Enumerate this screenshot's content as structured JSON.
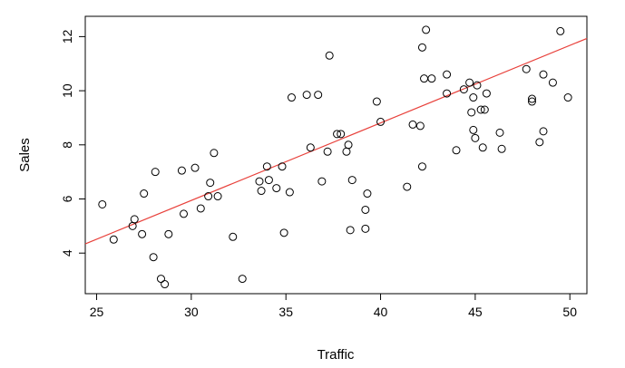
{
  "chart_data": {
    "type": "scatter",
    "title": "",
    "xlabel": "Traffic",
    "ylabel": "Sales",
    "xlim": [
      24.4,
      50.9
    ],
    "ylim": [
      2.5,
      12.75
    ],
    "xticks": [
      25,
      30,
      35,
      40,
      45,
      50
    ],
    "yticks": [
      4,
      6,
      8,
      10,
      12
    ],
    "grid": false,
    "legend": "none",
    "point_color": "#000000",
    "fit_color": "#e8413b",
    "fit_line": {
      "intercept": -2.65,
      "slope": 0.2865
    },
    "points": [
      {
        "x": 25.3,
        "y": 5.8
      },
      {
        "x": 25.9,
        "y": 4.5
      },
      {
        "x": 26.9,
        "y": 5.0
      },
      {
        "x": 27.0,
        "y": 5.25
      },
      {
        "x": 27.4,
        "y": 4.7
      },
      {
        "x": 27.5,
        "y": 6.2
      },
      {
        "x": 28.0,
        "y": 3.85
      },
      {
        "x": 28.1,
        "y": 7.0
      },
      {
        "x": 28.4,
        "y": 3.05
      },
      {
        "x": 28.6,
        "y": 2.85
      },
      {
        "x": 28.8,
        "y": 4.7
      },
      {
        "x": 29.5,
        "y": 7.05
      },
      {
        "x": 29.6,
        "y": 5.45
      },
      {
        "x": 30.2,
        "y": 7.15
      },
      {
        "x": 30.5,
        "y": 5.65
      },
      {
        "x": 30.9,
        "y": 6.1
      },
      {
        "x": 31.0,
        "y": 6.6
      },
      {
        "x": 31.2,
        "y": 7.7
      },
      {
        "x": 31.4,
        "y": 6.1
      },
      {
        "x": 32.2,
        "y": 4.6
      },
      {
        "x": 32.7,
        "y": 3.05
      },
      {
        "x": 33.6,
        "y": 6.65
      },
      {
        "x": 33.7,
        "y": 6.3
      },
      {
        "x": 34.0,
        "y": 7.2
      },
      {
        "x": 34.1,
        "y": 6.7
      },
      {
        "x": 34.5,
        "y": 6.4
      },
      {
        "x": 34.8,
        "y": 7.2
      },
      {
        "x": 34.9,
        "y": 4.75
      },
      {
        "x": 35.2,
        "y": 6.25
      },
      {
        "x": 35.3,
        "y": 9.75
      },
      {
        "x": 36.1,
        "y": 9.85
      },
      {
        "x": 36.3,
        "y": 7.9
      },
      {
        "x": 36.7,
        "y": 9.85
      },
      {
        "x": 36.9,
        "y": 6.65
      },
      {
        "x": 37.2,
        "y": 7.75
      },
      {
        "x": 37.3,
        "y": 11.3
      },
      {
        "x": 37.7,
        "y": 8.4
      },
      {
        "x": 37.9,
        "y": 8.4
      },
      {
        "x": 38.2,
        "y": 7.75
      },
      {
        "x": 38.3,
        "y": 8.0
      },
      {
        "x": 38.4,
        "y": 4.85
      },
      {
        "x": 38.5,
        "y": 6.7
      },
      {
        "x": 39.2,
        "y": 5.6
      },
      {
        "x": 39.2,
        "y": 4.9
      },
      {
        "x": 39.3,
        "y": 6.2
      },
      {
        "x": 39.8,
        "y": 9.6
      },
      {
        "x": 40.0,
        "y": 8.85
      },
      {
        "x": 41.4,
        "y": 6.45
      },
      {
        "x": 41.7,
        "y": 8.75
      },
      {
        "x": 42.1,
        "y": 8.7
      },
      {
        "x": 42.2,
        "y": 11.6
      },
      {
        "x": 42.2,
        "y": 7.2
      },
      {
        "x": 42.3,
        "y": 10.45
      },
      {
        "x": 42.4,
        "y": 12.25
      },
      {
        "x": 42.7,
        "y": 10.45
      },
      {
        "x": 43.5,
        "y": 10.6
      },
      {
        "x": 43.5,
        "y": 9.9
      },
      {
        "x": 44.0,
        "y": 7.8
      },
      {
        "x": 44.4,
        "y": 10.05
      },
      {
        "x": 44.7,
        "y": 10.3
      },
      {
        "x": 44.8,
        "y": 9.2
      },
      {
        "x": 44.9,
        "y": 9.75
      },
      {
        "x": 44.9,
        "y": 8.55
      },
      {
        "x": 45.0,
        "y": 8.25
      },
      {
        "x": 45.1,
        "y": 10.2
      },
      {
        "x": 45.3,
        "y": 9.3
      },
      {
        "x": 45.4,
        "y": 7.9
      },
      {
        "x": 45.5,
        "y": 9.3
      },
      {
        "x": 45.6,
        "y": 9.9
      },
      {
        "x": 46.3,
        "y": 8.45
      },
      {
        "x": 46.4,
        "y": 7.85
      },
      {
        "x": 47.7,
        "y": 10.8
      },
      {
        "x": 48.0,
        "y": 9.7
      },
      {
        "x": 48.0,
        "y": 9.6
      },
      {
        "x": 48.4,
        "y": 8.1
      },
      {
        "x": 48.6,
        "y": 8.5
      },
      {
        "x": 48.6,
        "y": 10.6
      },
      {
        "x": 49.1,
        "y": 10.3
      },
      {
        "x": 49.5,
        "y": 12.2
      },
      {
        "x": 49.9,
        "y": 9.75
      }
    ]
  }
}
